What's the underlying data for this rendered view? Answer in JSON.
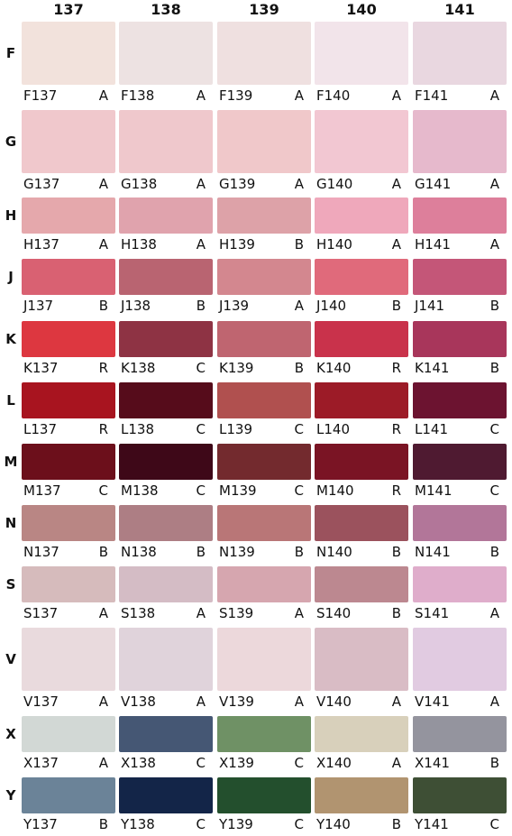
{
  "columns": [
    "137",
    "138",
    "139",
    "140",
    "141"
  ],
  "rows": [
    {
      "letter": "F",
      "cells": [
        {
          "code": "F137",
          "grade": "A",
          "color": "#f2e2dc"
        },
        {
          "code": "F138",
          "grade": "A",
          "color": "#ede2e2"
        },
        {
          "code": "F139",
          "grade": "A",
          "color": "#efe0e0"
        },
        {
          "code": "F140",
          "grade": "A",
          "color": "#f2e4ea"
        },
        {
          "code": "F141",
          "grade": "A",
          "color": "#e9d7e0"
        }
      ]
    },
    {
      "letter": "G",
      "cells": [
        {
          "code": "G137",
          "grade": "A",
          "color": "#f0c8cc"
        },
        {
          "code": "G138",
          "grade": "A",
          "color": "#efc8cc"
        },
        {
          "code": "G139",
          "grade": "A",
          "color": "#f0c8ca"
        },
        {
          "code": "G140",
          "grade": "A",
          "color": "#f2c7d2"
        },
        {
          "code": "G141",
          "grade": "A",
          "color": "#e6b9cc"
        }
      ]
    },
    {
      "letter": "H",
      "cells": [
        {
          "code": "H137",
          "grade": "A",
          "color": "#e5a8ac"
        },
        {
          "code": "H138",
          "grade": "A",
          "color": "#e0a3ad"
        },
        {
          "code": "H139",
          "grade": "B",
          "color": "#dda2a8"
        },
        {
          "code": "H140",
          "grade": "A",
          "color": "#efa8bb"
        },
        {
          "code": "H141",
          "grade": "A",
          "color": "#dd7f9b"
        }
      ]
    },
    {
      "letter": "J",
      "cells": [
        {
          "code": "J137",
          "grade": "B",
          "color": "#d96172"
        },
        {
          "code": "J138",
          "grade": "B",
          "color": "#b96471"
        },
        {
          "code": "J139",
          "grade": "A",
          "color": "#d3878f"
        },
        {
          "code": "J140",
          "grade": "B",
          "color": "#e06a7b"
        },
        {
          "code": "J141",
          "grade": "B",
          "color": "#c45678"
        }
      ]
    },
    {
      "letter": "K",
      "cells": [
        {
          "code": "K137",
          "grade": "R",
          "color": "#dd3740"
        },
        {
          "code": "K138",
          "grade": "C",
          "color": "#8e3344"
        },
        {
          "code": "K139",
          "grade": "B",
          "color": "#bf6570"
        },
        {
          "code": "K140",
          "grade": "R",
          "color": "#c9324b"
        },
        {
          "code": "K141",
          "grade": "B",
          "color": "#a8365b"
        }
      ]
    },
    {
      "letter": "L",
      "cells": [
        {
          "code": "L137",
          "grade": "R",
          "color": "#a8141f"
        },
        {
          "code": "L138",
          "grade": "C",
          "color": "#560c1b"
        },
        {
          "code": "L139",
          "grade": "C",
          "color": "#b0504f"
        },
        {
          "code": "L140",
          "grade": "R",
          "color": "#9c1b27"
        },
        {
          "code": "L141",
          "grade": "C",
          "color": "#6c1330"
        }
      ]
    },
    {
      "letter": "M",
      "cells": [
        {
          "code": "M137",
          "grade": "C",
          "color": "#6c0f1b"
        },
        {
          "code": "M138",
          "grade": "C",
          "color": "#3e0818"
        },
        {
          "code": "M139",
          "grade": "C",
          "color": "#732a2e"
        },
        {
          "code": "M140",
          "grade": "R",
          "color": "#7a1424"
        },
        {
          "code": "M141",
          "grade": "C",
          "color": "#4f1a31"
        }
      ]
    },
    {
      "letter": "N",
      "cells": [
        {
          "code": "N137",
          "grade": "B",
          "color": "#b98684"
        },
        {
          "code": "N138",
          "grade": "B",
          "color": "#ad7e84"
        },
        {
          "code": "N139",
          "grade": "B",
          "color": "#b97677"
        },
        {
          "code": "N140",
          "grade": "B",
          "color": "#9b525d"
        },
        {
          "code": "N141",
          "grade": "B",
          "color": "#b27699"
        }
      ]
    },
    {
      "letter": "S",
      "cells": [
        {
          "code": "S137",
          "grade": "A",
          "color": "#d6bbbc"
        },
        {
          "code": "S138",
          "grade": "A",
          "color": "#d4bcc5"
        },
        {
          "code": "S139",
          "grade": "A",
          "color": "#d6a6af"
        },
        {
          "code": "S140",
          "grade": "B",
          "color": "#bc8890"
        },
        {
          "code": "S141",
          "grade": "A",
          "color": "#dfadcb"
        }
      ]
    },
    {
      "letter": "V",
      "cells": [
        {
          "code": "V137",
          "grade": "A",
          "color": "#e9dadd"
        },
        {
          "code": "V138",
          "grade": "A",
          "color": "#e0d3db"
        },
        {
          "code": "V139",
          "grade": "A",
          "color": "#ecd8db"
        },
        {
          "code": "V140",
          "grade": "A",
          "color": "#d9bcc5"
        },
        {
          "code": "V141",
          "grade": "A",
          "color": "#e1cbe1"
        }
      ]
    },
    {
      "letter": "X",
      "cells": [
        {
          "code": "X137",
          "grade": "A",
          "color": "#d2d8d5"
        },
        {
          "code": "X138",
          "grade": "C",
          "color": "#455774"
        },
        {
          "code": "X139",
          "grade": "C",
          "color": "#6f9165"
        },
        {
          "code": "X140",
          "grade": "A",
          "color": "#d8d0bb"
        },
        {
          "code": "X141",
          "grade": "B",
          "color": "#94949e"
        }
      ]
    },
    {
      "letter": "Y",
      "cells": [
        {
          "code": "Y137",
          "grade": "B",
          "color": "#6b8398"
        },
        {
          "code": "Y138",
          "grade": "C",
          "color": "#132548"
        },
        {
          "code": "Y139",
          "grade": "C",
          "color": "#234f2d"
        },
        {
          "code": "Y140",
          "grade": "B",
          "color": "#b19470"
        },
        {
          "code": "Y141",
          "grade": "C",
          "color": "#3e4f35"
        }
      ]
    }
  ]
}
